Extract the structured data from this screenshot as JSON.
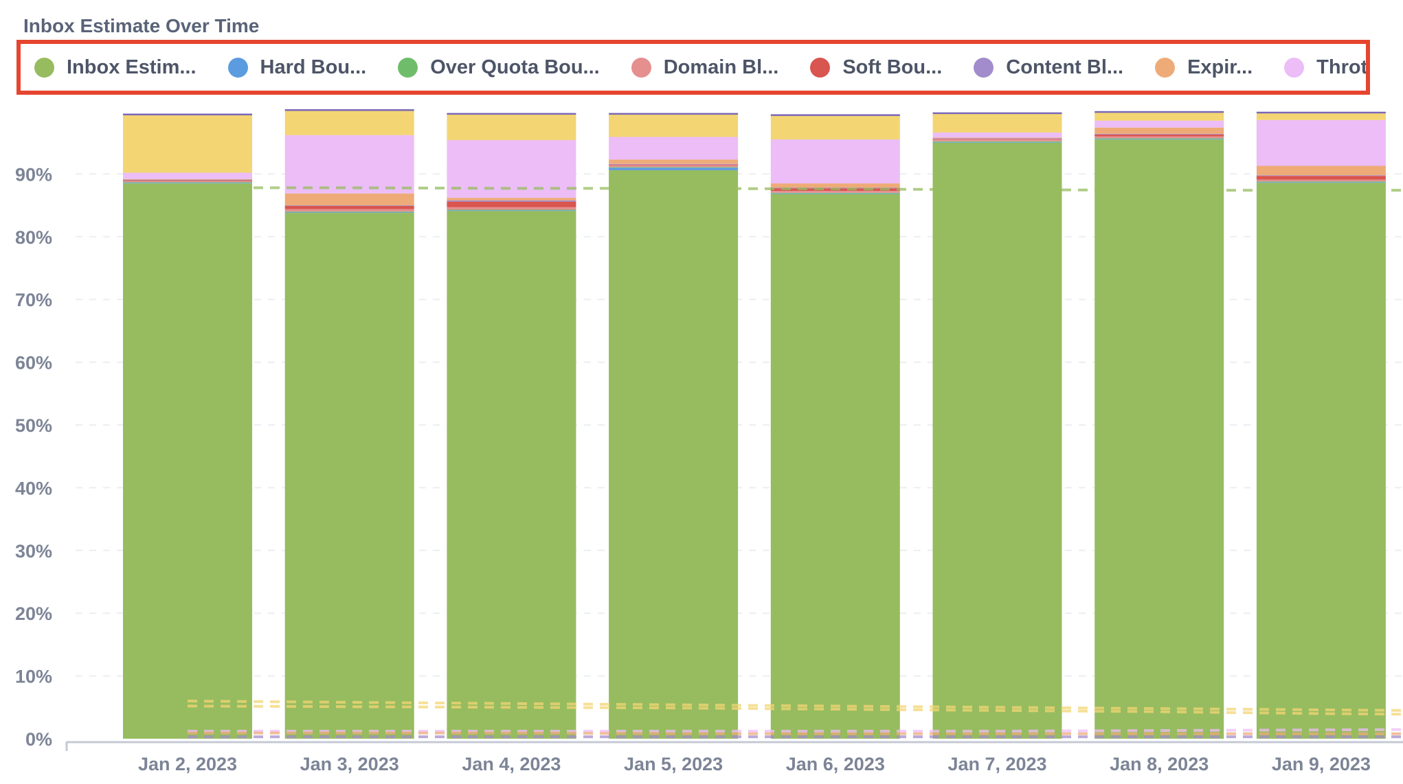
{
  "title": "Inbox Estimate Over Time",
  "colors": {
    "inbox": "#96bc5f",
    "hard": "#5b9be0",
    "quota": "#6fbd6a",
    "domain": "#e58f8f",
    "soft": "#d9554f",
    "content": "#a38ccb",
    "expired": "#eeab78",
    "throttled": "#ecbdf7",
    "other": "#f3d574"
  },
  "legend": [
    {
      "label": "Inbox Estim...",
      "color": "#96bc5f",
      "icon": "circle"
    },
    {
      "label": "Hard Bou...",
      "color": "#5b9be0",
      "icon": "circle"
    },
    {
      "label": "Over Quota Bou...",
      "color": "#6fbd6a",
      "icon": "circle"
    },
    {
      "label": "Domain Bl...",
      "color": "#e58f8f",
      "icon": "circle"
    },
    {
      "label": "Soft Bou...",
      "color": "#d9554f",
      "icon": "circle"
    },
    {
      "label": "Content Bl...",
      "color": "#a38ccb",
      "icon": "circle"
    },
    {
      "label": "Expir...",
      "color": "#eeab78",
      "icon": "circle"
    },
    {
      "label": "Throttled Bl...",
      "color": "#ecbdf7",
      "icon": "circle"
    },
    {
      "label": "",
      "color": "#f3d574",
      "icon": "circle"
    }
  ],
  "chart_data": {
    "type": "bar",
    "stacked": true,
    "title": "Inbox Estimate Over Time",
    "categories": [
      "Jan 2, 2023",
      "Jan 3, 2023",
      "Jan 4, 2023",
      "Jan 5, 2023",
      "Jan 6, 2023",
      "Jan 7, 2023",
      "Jan 8, 2023",
      "Jan 9, 2023"
    ],
    "yticks": [
      "0%",
      "10%",
      "20%",
      "30%",
      "40%",
      "50%",
      "60%",
      "70%",
      "80%",
      "90%"
    ],
    "ylim": [
      0,
      100
    ],
    "grid": true,
    "legend_position": "top",
    "series": [
      {
        "key": "inbox",
        "values": [
          88.5,
          83.8,
          84.1,
          90.6,
          86.8,
          95.0,
          95.5,
          88.6
        ]
      },
      {
        "key": "hard",
        "values": [
          0.1,
          0.1,
          0.1,
          0.4,
          0.1,
          0.1,
          0.1,
          0.1
        ]
      },
      {
        "key": "quota",
        "values": [
          0.1,
          0.1,
          0.1,
          0.1,
          0.1,
          0.1,
          0.1,
          0.1
        ]
      },
      {
        "key": "domain",
        "values": [
          0.2,
          0.4,
          0.4,
          0.3,
          0.3,
          0.3,
          0.3,
          0.3
        ]
      },
      {
        "key": "soft",
        "values": [
          0.1,
          0.5,
          0.9,
          0.1,
          0.4,
          0.1,
          0.3,
          0.6
        ]
      },
      {
        "key": "content",
        "values": [
          0.1,
          0.1,
          0.2,
          0.1,
          0.1,
          0.1,
          0.1,
          0.1
        ]
      },
      {
        "key": "expired",
        "values": [
          0.1,
          1.9,
          0.4,
          0.7,
          0.7,
          0.1,
          1.0,
          1.5
        ]
      },
      {
        "key": "throttled",
        "values": [
          1.0,
          9.3,
          9.2,
          3.6,
          7.0,
          0.8,
          1.1,
          7.3
        ]
      },
      {
        "key": "other",
        "values": [
          9.2,
          3.9,
          4.1,
          3.6,
          3.8,
          3.0,
          1.3,
          1.1
        ]
      }
    ],
    "trend_lines": [
      {
        "key": "inbox",
        "values": [
          87.8,
          87.8,
          87.7,
          87.7,
          87.6,
          87.5,
          87.4,
          87.4,
          87.4
        ]
      },
      {
        "key": "other",
        "values": [
          6.0,
          5.8,
          5.6,
          5.4,
          5.2,
          5.0,
          4.8,
          4.6,
          4.4
        ]
      },
      {
        "key": "other",
        "values": [
          5.2,
          5.1,
          5.0,
          4.9,
          4.7,
          4.5,
          4.3,
          4.0,
          3.8
        ]
      },
      {
        "key": "throttled",
        "values": [
          1.2,
          1.2,
          1.2,
          1.2,
          1.2,
          1.2,
          1.3,
          1.4,
          1.5
        ]
      },
      {
        "key": "expired",
        "values": [
          0.9,
          0.9,
          0.9,
          0.8,
          0.8,
          0.8,
          0.8,
          0.8,
          0.8
        ]
      },
      {
        "key": "content",
        "values": [
          0.3,
          0.3,
          0.3,
          0.3,
          0.3,
          0.3,
          0.3,
          0.3,
          0.3
        ]
      }
    ]
  }
}
